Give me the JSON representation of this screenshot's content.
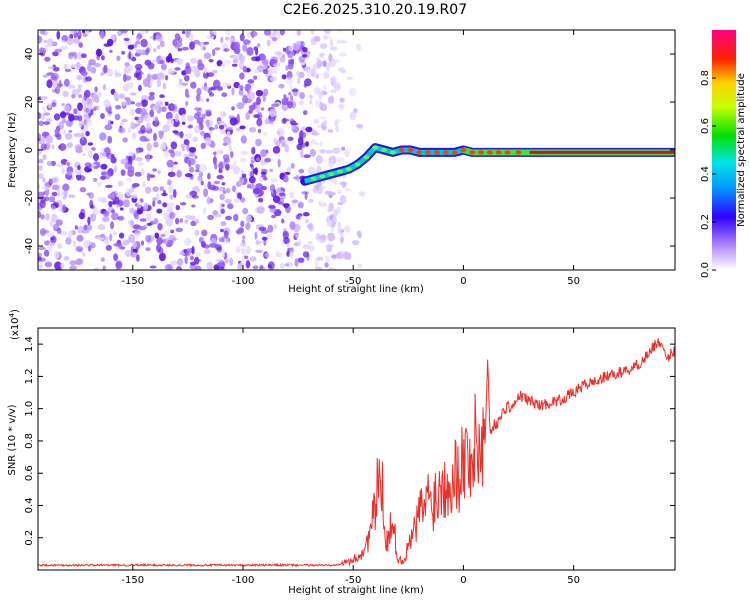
{
  "page_title": "C2E6.2025.310.20.19.R07",
  "chart_data": [
    {
      "type": "heatmap",
      "name": "spectrogram",
      "xlabel": "Height of straight line (km)",
      "ylabel": "Frequency (Hz)",
      "xlim": [
        -193,
        96
      ],
      "ylim": [
        -50,
        50
      ],
      "xticks": [
        -150,
        -100,
        -50,
        0,
        50
      ],
      "yticks": [
        -40,
        -20,
        0,
        20,
        40
      ],
      "noise_region_km": [
        -193,
        -60
      ],
      "signal_trace": {
        "x": [
          -72,
          -68,
          -64,
          -60,
          -56,
          -52,
          -48,
          -44,
          -40,
          -36,
          -32,
          -28,
          -24,
          -20,
          -16,
          -12,
          -8,
          -4,
          0,
          4,
          8,
          12,
          16,
          20,
          25,
          30,
          40,
          50,
          60,
          70,
          80,
          90,
          96
        ],
        "freq": [
          -13,
          -12,
          -11,
          -10,
          -9,
          -8,
          -6,
          -3,
          1,
          0,
          -1,
          0,
          0,
          -1,
          -1,
          -1,
          -1,
          -1,
          0,
          -1,
          -1,
          -1,
          -1,
          -1,
          -1,
          -1,
          -1,
          -1,
          -1,
          -1,
          -1,
          -1,
          -1
        ]
      },
      "colorbar": {
        "label": "Normalized spectral amplitude",
        "ticks": [
          "0.0",
          "0.2",
          "0.4",
          "0.6",
          "0.8"
        ],
        "tick_values": [
          0.0,
          0.2,
          0.4,
          0.6,
          0.8
        ],
        "range": [
          0,
          1
        ]
      }
    },
    {
      "type": "line",
      "name": "snr",
      "xlabel": "Height of straight line (km)",
      "ylabel": "SNR (10 * v/v)",
      "multiplier_prefix": "(x10",
      "multiplier_exponent": "4",
      "multiplier_suffix": ")",
      "xlim": [
        -193,
        96
      ],
      "ylim": [
        0,
        1.5
      ],
      "xticks": [
        -150,
        -100,
        -50,
        0,
        50
      ],
      "yticks": [
        "0.2",
        "0.4",
        "0.6",
        "0.8",
        "1.0",
        "1.2",
        "1.4"
      ],
      "ytick_values": [
        0.2,
        0.4,
        0.6,
        0.8,
        1.0,
        1.2,
        1.4
      ],
      "color": "#e8302a",
      "series": {
        "x": [
          -193,
          -150,
          -100,
          -60,
          -55,
          -50,
          -45,
          -42,
          -40,
          -38,
          -36,
          -35,
          -33,
          -31,
          -30,
          -28,
          -26,
          -24,
          -22,
          -20,
          -18,
          -16,
          -14,
          -12,
          -10,
          -8,
          -6,
          -4,
          -2,
          0,
          2,
          4,
          6,
          8,
          10,
          11,
          12,
          14,
          16,
          18,
          20,
          22,
          24,
          26,
          30,
          35,
          40,
          45,
          50,
          55,
          60,
          65,
          70,
          75,
          80,
          85,
          88,
          90,
          92,
          94,
          96
        ],
        "y": [
          0.03,
          0.03,
          0.03,
          0.03,
          0.04,
          0.06,
          0.12,
          0.25,
          0.38,
          0.6,
          0.4,
          0.15,
          0.3,
          0.2,
          0.08,
          0.05,
          0.1,
          0.18,
          0.25,
          0.35,
          0.4,
          0.45,
          0.42,
          0.48,
          0.52,
          0.56,
          0.6,
          0.58,
          0.64,
          0.68,
          0.7,
          0.72,
          0.78,
          0.8,
          0.85,
          1.32,
          0.86,
          0.9,
          0.92,
          0.98,
          1.02,
          1.0,
          1.05,
          1.08,
          1.05,
          1.02,
          1.04,
          1.06,
          1.1,
          1.15,
          1.17,
          1.2,
          1.22,
          1.24,
          1.28,
          1.36,
          1.42,
          1.38,
          1.3,
          1.34,
          1.36
        ]
      }
    }
  ]
}
